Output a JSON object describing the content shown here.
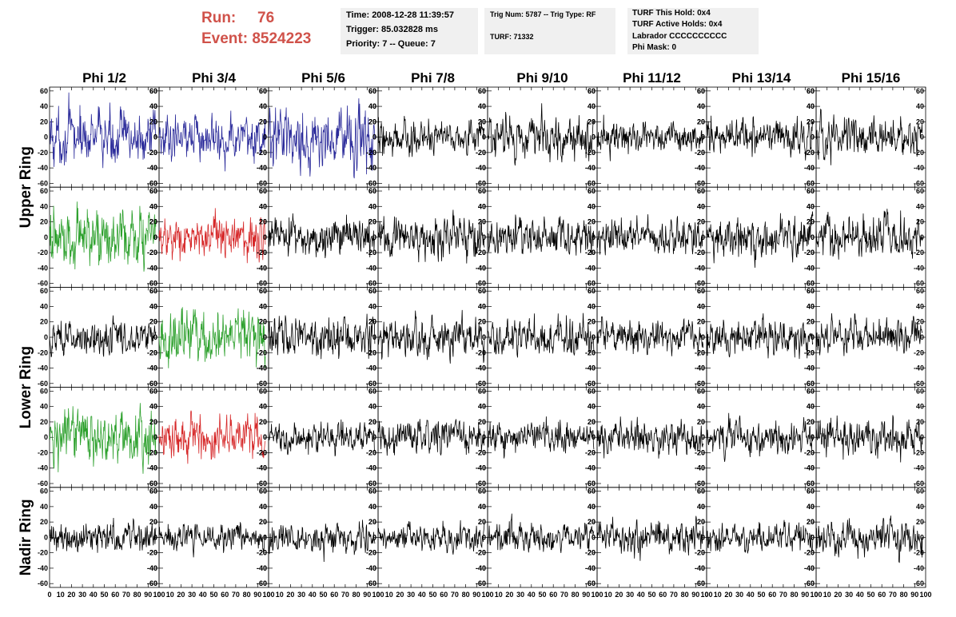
{
  "header": {
    "run_label": "Run:",
    "run_value": "76",
    "event_label": "Event:",
    "event_value": "8524223"
  },
  "info_time": {
    "time": "Time: 2008-12-28 11:39:57",
    "trigger": "Trigger: 85.032828 ms",
    "priority": "Priority: 7 -- Queue: 7"
  },
  "info_trig": {
    "trig": "Trig Num: 5787 -- Trig Type: RF",
    "turf": "TURF: 71332"
  },
  "info_turf": {
    "this_hold": "TURF This Hold: 0x4",
    "active_holds": "TURF Active Holds: 0x4",
    "labrador": "Labrador CCCCCCCCCC",
    "phi_mask": "Phi Mask: 0"
  },
  "chart_data": {
    "type": "line",
    "description_of_grid": "8 phi sectors x 5 antenna channels, each a waveform trace",
    "columns": [
      "Phi 1/2",
      "Phi 3/4",
      "Phi 5/6",
      "Phi 7/8",
      "Phi 9/10",
      "Phi 11/12",
      "Phi 13/14",
      "Phi 15/16"
    ],
    "row_groups": [
      {
        "label": "Upper Ring",
        "rows": [
          0,
          1
        ]
      },
      {
        "label": "Lower Ring",
        "rows": [
          2,
          3
        ]
      },
      {
        "label": "Nadir Ring",
        "rows": [
          4
        ]
      }
    ],
    "xlim": [
      0,
      100
    ],
    "ylim": [
      -65,
      65
    ],
    "x_ticks": [
      0,
      10,
      20,
      30,
      40,
      50,
      60,
      70,
      80,
      90,
      100
    ],
    "y_ticks": [
      60,
      40,
      20,
      0,
      -20,
      -40,
      -60
    ],
    "samples_per_trace": 260,
    "trace_colors": [
      [
        "#2a2a9a",
        "#2a2a9a",
        "#2a2a9a",
        "#000000",
        "#000000",
        "#000000",
        "#000000",
        "#000000"
      ],
      [
        "#2ca02c",
        "#d62728",
        "#000000",
        "#000000",
        "#000000",
        "#000000",
        "#000000",
        "#000000"
      ],
      [
        "#000000",
        "#2ca02c",
        "#000000",
        "#000000",
        "#000000",
        "#000000",
        "#000000",
        "#000000"
      ],
      [
        "#2ca02c",
        "#d62728",
        "#000000",
        "#000000",
        "#000000",
        "#000000",
        "#000000",
        "#000000"
      ],
      [
        "#000000",
        "#000000",
        "#000000",
        "#000000",
        "#000000",
        "#000000",
        "#000000",
        "#000000"
      ]
    ],
    "trace_amplitudes": [
      [
        22,
        18,
        24,
        14,
        18,
        13,
        15,
        16
      ],
      [
        24,
        18,
        16,
        17,
        16,
        14,
        16,
        17
      ],
      [
        14,
        22,
        16,
        16,
        15,
        14,
        15,
        14
      ],
      [
        22,
        18,
        12,
        14,
        12,
        13,
        13,
        15
      ],
      [
        13,
        11,
        12,
        11,
        12,
        13,
        13,
        14
      ]
    ]
  }
}
